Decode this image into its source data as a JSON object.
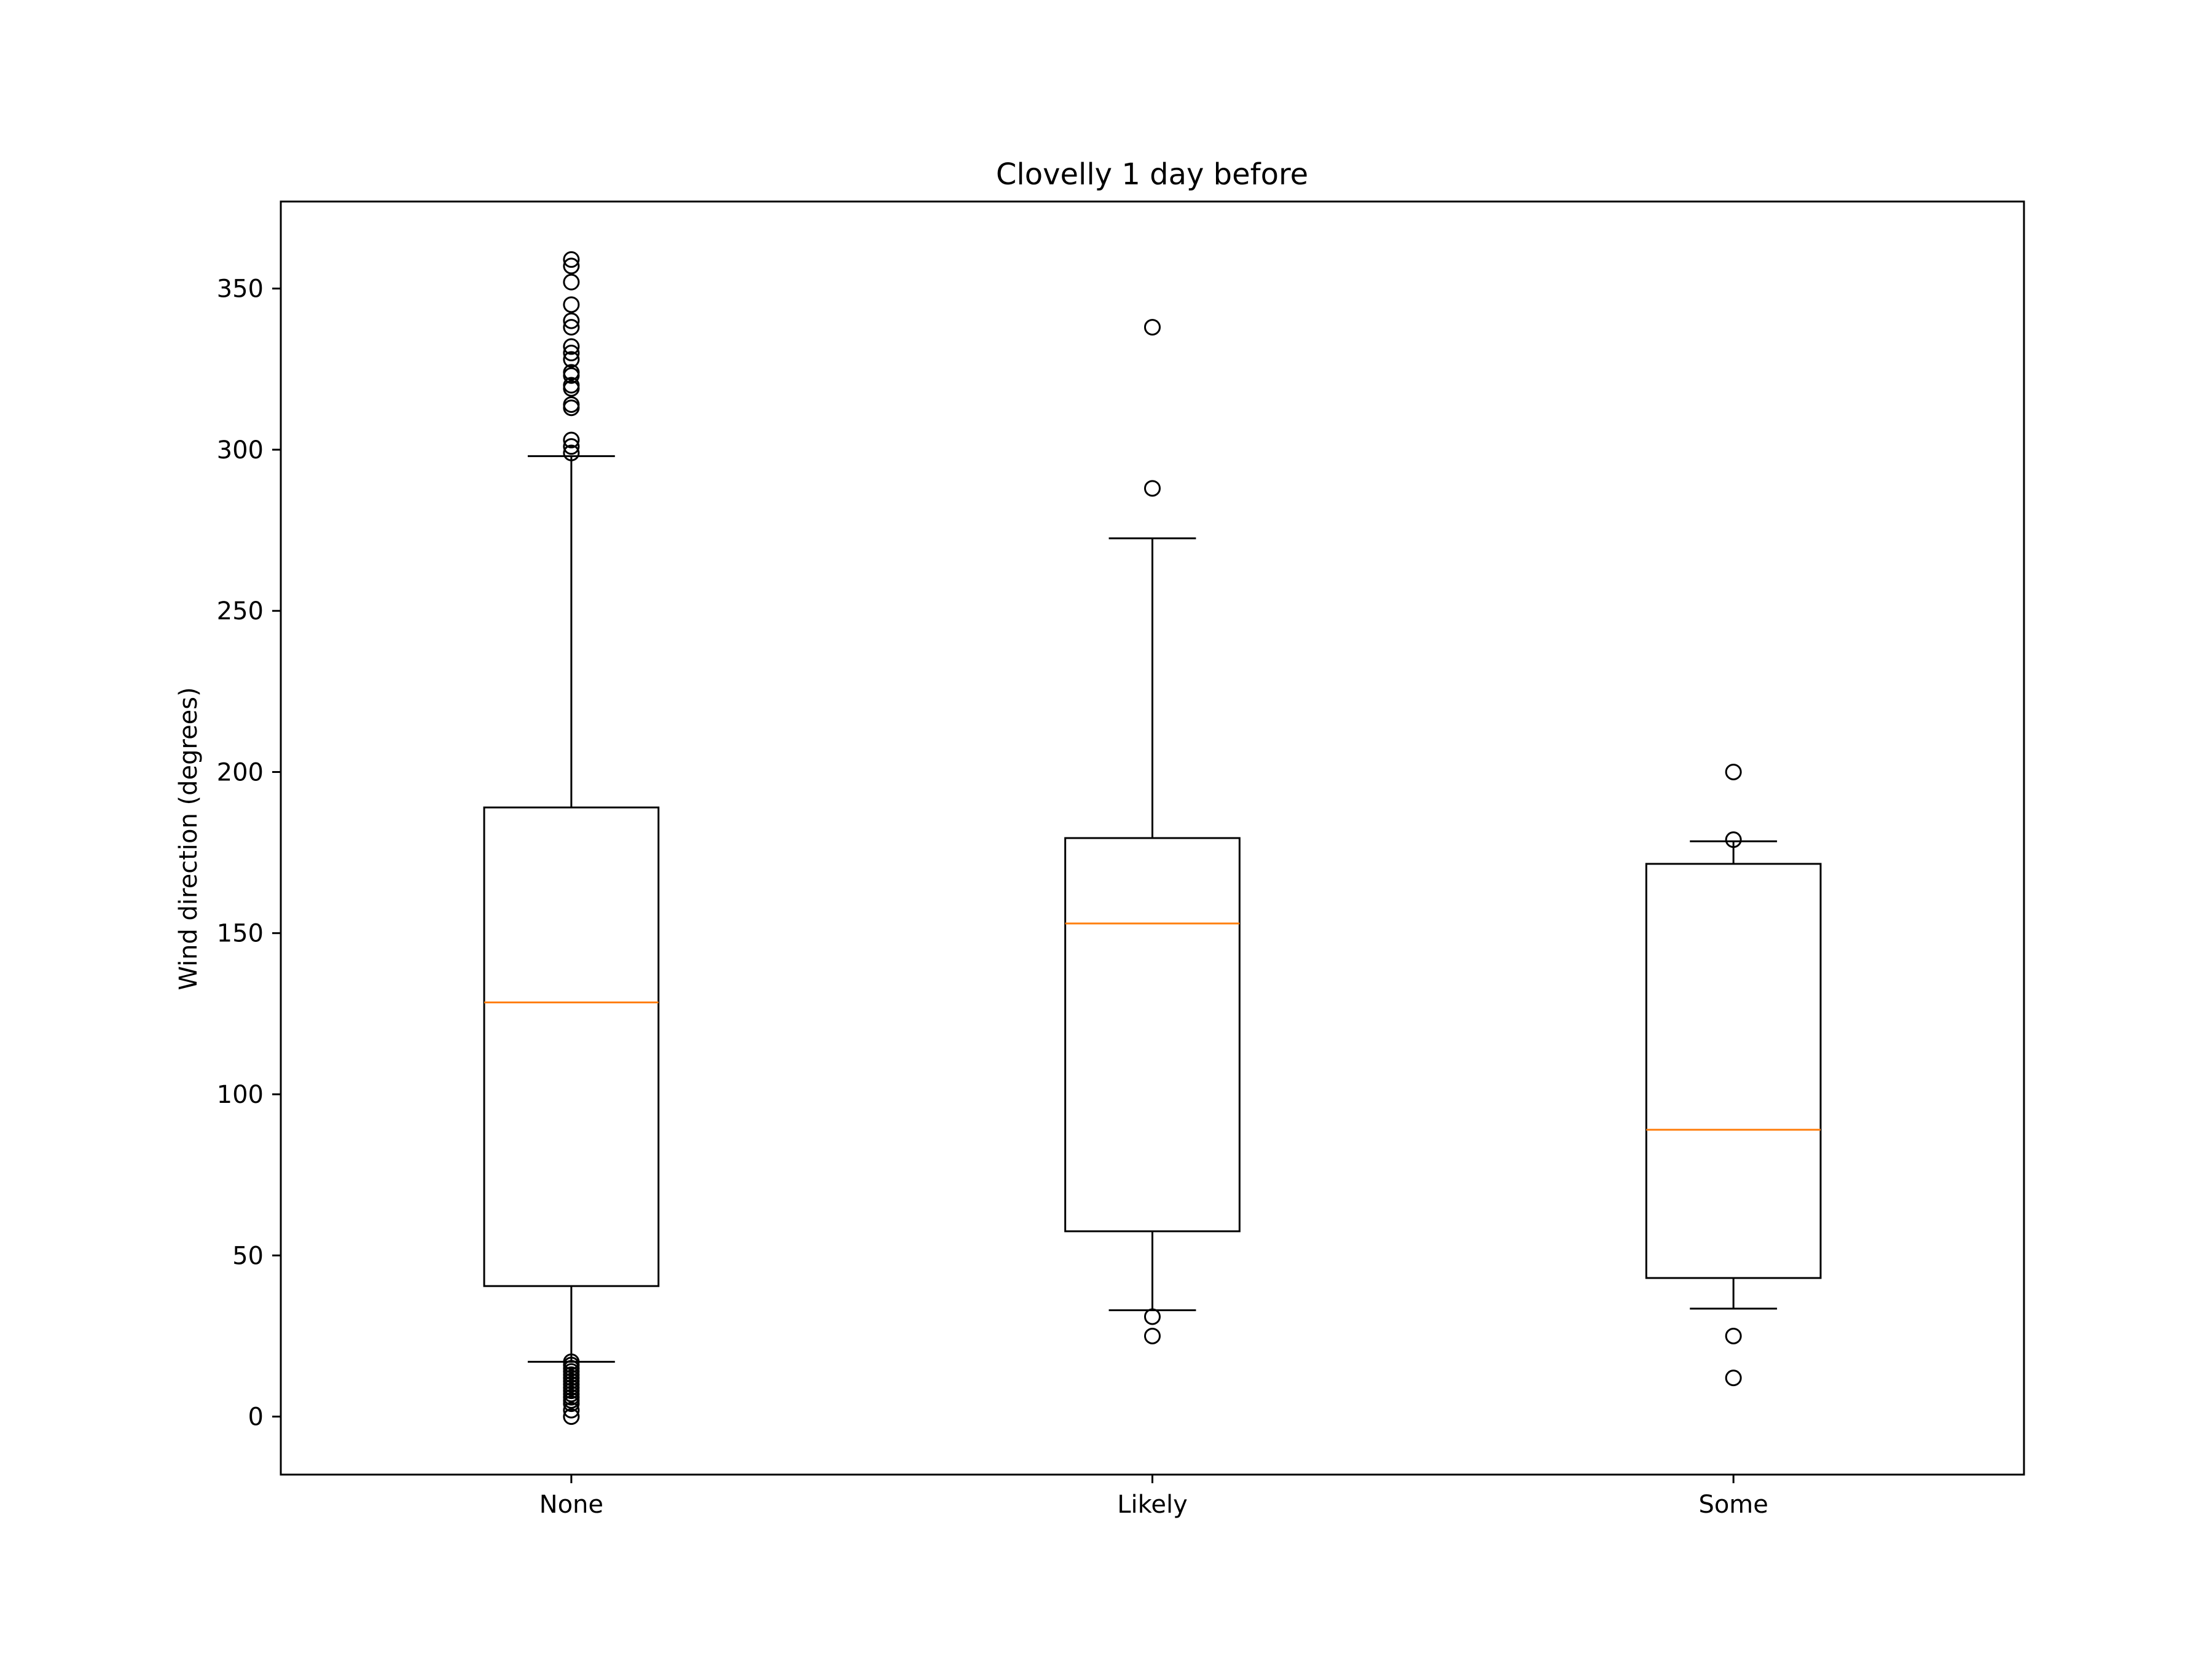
{
  "chart_data": {
    "type": "box",
    "title": "Clovelly 1 day before",
    "xlabel": "",
    "ylabel": "Wind direction (degrees)",
    "ylim": [
      -18,
      377
    ],
    "yticks": [
      0,
      50,
      100,
      150,
      200,
      250,
      300,
      350
    ],
    "ytick_labels": [
      "0",
      "50",
      "100",
      "150",
      "200",
      "250",
      "300",
      "350"
    ],
    "grid": false,
    "categories": [
      "None",
      "Likely",
      "Some"
    ],
    "boxes": [
      {
        "label": "None",
        "whisker_low": 17,
        "q1": 40.5,
        "median": 128.5,
        "q3": 189,
        "whisker_high": 298,
        "outliers": [
          0,
          2,
          4,
          5,
          6,
          7,
          8,
          9,
          10,
          11,
          12,
          13,
          14,
          15,
          16,
          17,
          299,
          301,
          303,
          313,
          314,
          319,
          320,
          323,
          324,
          328,
          330,
          332,
          338,
          340,
          345,
          352,
          357,
          359
        ]
      },
      {
        "label": "Likely",
        "whisker_low": 33,
        "q1": 57.5,
        "median": 153,
        "q3": 179.5,
        "whisker_high": 272.5,
        "outliers": [
          25,
          31,
          288,
          338
        ]
      },
      {
        "label": "Some",
        "whisker_low": 33.5,
        "q1": 43,
        "median": 89,
        "q3": 171.5,
        "whisker_high": 178.5,
        "outliers": [
          12,
          25,
          179,
          200
        ]
      }
    ],
    "colors": {
      "box": "#000000",
      "median": "#ff7f0e",
      "outlier": "#000000"
    }
  }
}
